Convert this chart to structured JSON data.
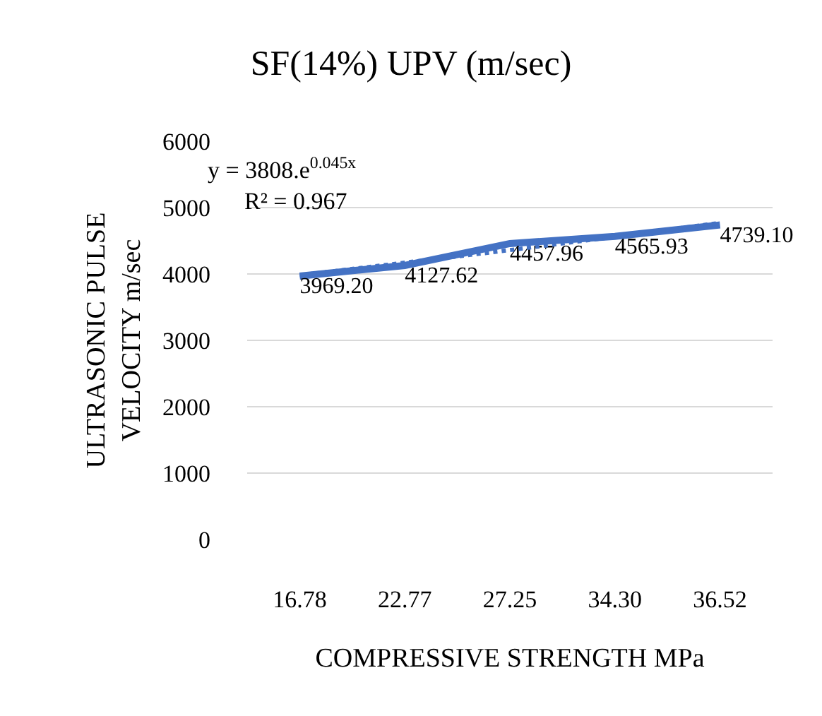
{
  "chart_data": {
    "type": "line",
    "title": "SF(14%) UPV (m/sec)",
    "xlabel": "COMPRESSIVE STRENGTH MPa",
    "ylabel": "ULTRASONIC PULSE VELOCITY m/sec",
    "categories": [
      "16.78",
      "22.77",
      "27.25",
      "34.30",
      "36.52"
    ],
    "series": [
      {
        "color": "#4472c4",
        "values": [
          3969.2,
          4127.62,
          4457.96,
          4565.93,
          4739.1
        ],
        "value_labels": [
          "3969.20",
          "4127.62",
          "4457.96",
          "4565.93",
          "4739.10"
        ],
        "line_style": "solid"
      },
      {
        "color": "#4472c4",
        "values": [
          3980,
          4170,
          4360,
          4560,
          4770
        ],
        "line_style": "dotted"
      }
    ],
    "annotations": [
      "y = 3808.e$^{0.045x}$",
      "R² = 0.967"
    ],
    "ylim": [
      0,
      6000
    ],
    "yticks": [
      0,
      1000,
      2000,
      3000,
      4000,
      5000,
      6000
    ],
    "grid": "y",
    "marker": "none"
  }
}
